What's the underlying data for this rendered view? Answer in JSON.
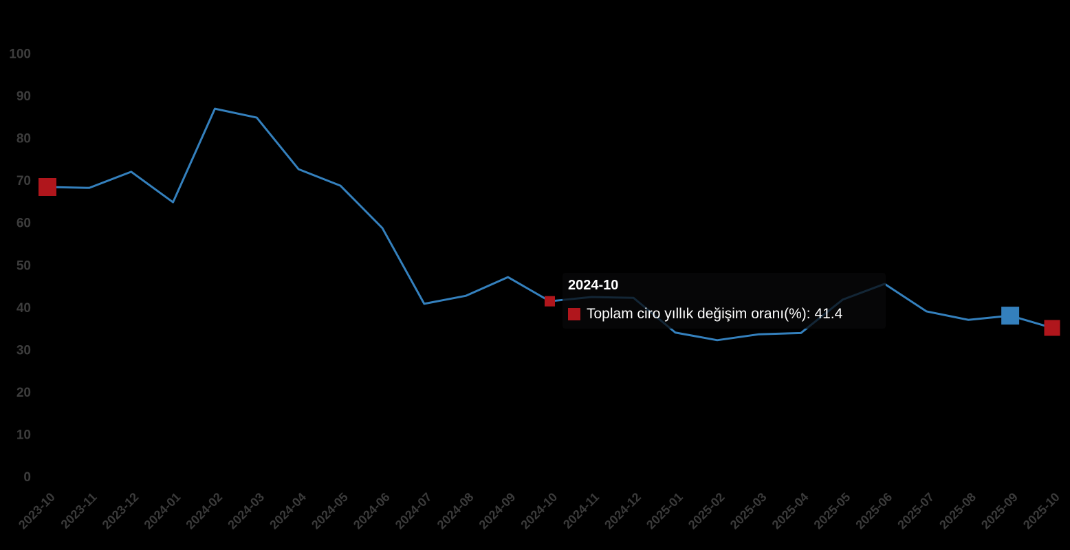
{
  "chart_data": {
    "type": "line",
    "title": "",
    "xlabel": "",
    "ylabel": "",
    "ylim": [
      0,
      100
    ],
    "y_tick_step": 10,
    "grid": false,
    "legend_position": "none",
    "background_color": "#000000",
    "axis_label_color": "#3b3b3b",
    "categories": [
      "2023-10",
      "2023-11",
      "2023-12",
      "2024-01",
      "2024-02",
      "2024-03",
      "2024-04",
      "2024-05",
      "2024-06",
      "2024-07",
      "2024-08",
      "2024-09",
      "2024-10",
      "2024-11",
      "2024-12",
      "2025-01",
      "2025-02",
      "2025-03",
      "2025-04",
      "2025-05",
      "2025-06",
      "2025-07",
      "2025-08",
      "2025-09",
      "2025-10"
    ],
    "series": [
      {
        "name": "Toplam ciro yıllık değişim oranı(%)",
        "color": "#3480bd",
        "values": [
          68.4,
          68.2,
          72.0,
          64.8,
          86.9,
          84.8,
          72.6,
          68.7,
          58.7,
          40.8,
          42.7,
          47.1,
          41.4,
          42.4,
          42.2,
          34.0,
          32.2,
          33.6,
          33.9,
          41.8,
          45.5,
          39.0,
          37.0,
          38.0,
          35.1
        ]
      }
    ],
    "point_markers": [
      {
        "category": "2023-10",
        "index": 0,
        "shape": "square",
        "color": "#b0161c",
        "size": 26
      },
      {
        "category": "2024-10",
        "index": 12,
        "shape": "square",
        "color": "#b0161c",
        "size": 15
      },
      {
        "category": "2025-09",
        "index": 23,
        "shape": "square",
        "color": "#3480bd",
        "size": 26
      },
      {
        "category": "2025-10",
        "index": 24,
        "shape": "square",
        "color": "#b0161c",
        "size": 23
      }
    ],
    "tooltip": {
      "title": "2024-10",
      "series_label": "Toplam ciro yıllık değişim oranı(%)",
      "separator": ": ",
      "value": "41.4",
      "swatch_color": "#b0161c"
    }
  }
}
